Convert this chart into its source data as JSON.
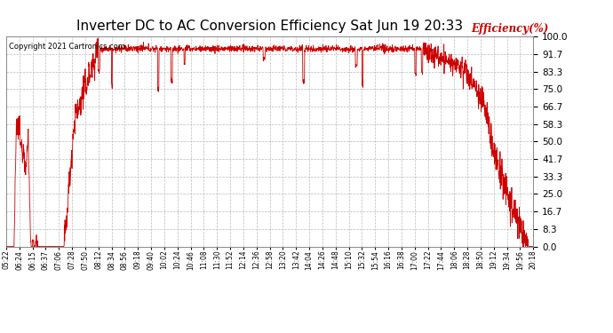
{
  "title": "Inverter DC to AC Conversion Efficiency Sat Jun 19 20:33",
  "copyright": "Copyright 2021 Cartronics.com",
  "ylabel": "Efficiency(%)",
  "ylabel_color": "#cc0000",
  "title_fontsize": 11,
  "line_color": "#cc0000",
  "bg_color": "#ffffff",
  "grid_color": "#bbbbbb",
  "ylim": [
    0.0,
    100.0
  ],
  "yticks": [
    0.0,
    8.3,
    16.7,
    25.0,
    33.3,
    41.7,
    50.0,
    58.3,
    66.7,
    75.0,
    83.3,
    91.7,
    100.0
  ],
  "xtick_labels": [
    "05:22",
    "06:24",
    "06:15",
    "06:37",
    "07:06",
    "07:28",
    "07:50",
    "08:12",
    "08:34",
    "08:56",
    "09:18",
    "09:40",
    "10:02",
    "10:24",
    "10:46",
    "11:08",
    "11:30",
    "11:52",
    "12:14",
    "12:36",
    "12:58",
    "13:20",
    "13:42",
    "14:04",
    "14:26",
    "14:48",
    "15:10",
    "15:32",
    "15:54",
    "16:16",
    "16:38",
    "17:00",
    "17:22",
    "17:44",
    "18:06",
    "18:28",
    "18:50",
    "19:12",
    "19:34",
    "19:56",
    "20:18"
  ],
  "figwidth": 6.9,
  "figheight": 3.75,
  "dpi": 100
}
